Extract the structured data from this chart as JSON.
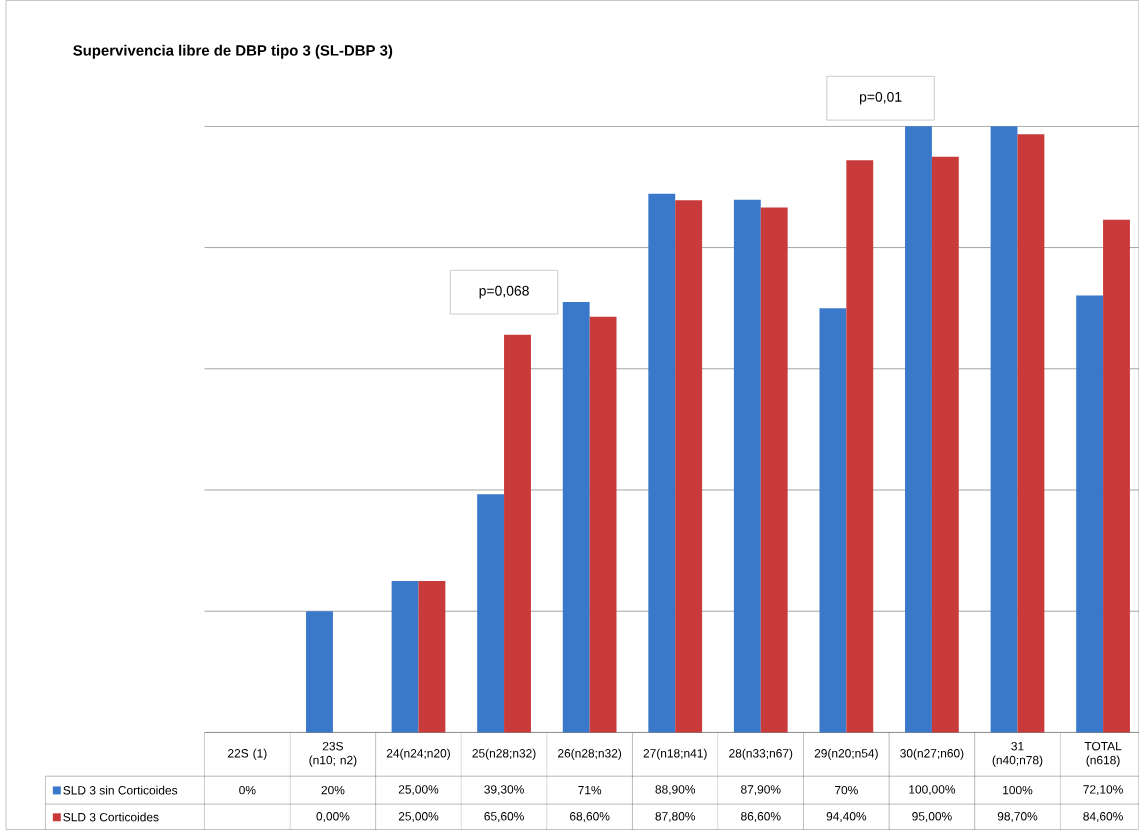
{
  "chart_data": {
    "type": "bar",
    "title": "Supervivencia libre de DBP tipo 3 (SL-DBP 3)",
    "categories": [
      "22S (1)",
      "23S (n10; n2)",
      "24(n24;n20)",
      "25(n28;n32)",
      "26(n28;n32)",
      "27(n18;n41)",
      "28(n33;n67)",
      "29(n20;n54)",
      "30(n27;n60)",
      "31 (n40;n78)",
      "TOTAL (n618)"
    ],
    "series": [
      {
        "name": "SLD 3 sin Corticoides",
        "color": "#3a78c9",
        "values": [
          0,
          20,
          25,
          39.3,
          71,
          88.9,
          87.9,
          70,
          100,
          100,
          72.1
        ],
        "value_labels": [
          "0%",
          "20%",
          "25,00%",
          "39,30%",
          "71%",
          "88,90%",
          "87,90%",
          "70%",
          "100,00%",
          "100%",
          "72,10%"
        ]
      },
      {
        "name": "SLD 3 Corticoides",
        "color": "#c93a3a",
        "values": [
          null,
          0,
          25,
          65.6,
          68.6,
          87.8,
          86.6,
          94.4,
          95,
          98.7,
          84.6
        ],
        "value_labels": [
          null,
          "0,00%",
          "25,00%",
          "65,60%",
          "68,60%",
          "87,80%",
          "86,60%",
          "94,40%",
          "95,00%",
          "98,70%",
          "84,60%"
        ]
      }
    ],
    "ylim": [
      0,
      100
    ],
    "yticks": [
      0,
      20,
      40,
      60,
      80,
      100
    ],
    "grid": "y",
    "tick_labels": "x",
    "legend": "bottom left",
    "annotations": [
      "p=0,068",
      "p=0,01"
    ]
  }
}
